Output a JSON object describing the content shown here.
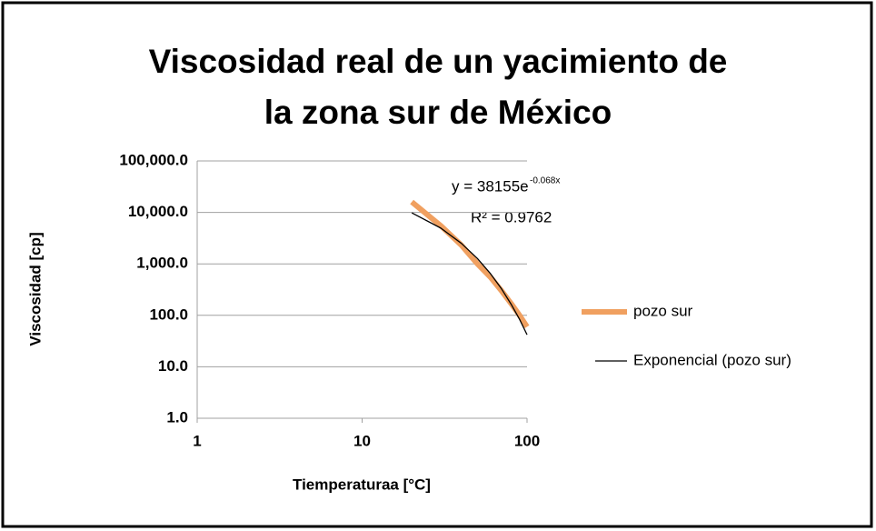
{
  "chart_data": {
    "type": "line",
    "title": [
      "Viscosidad real de un yacimiento de",
      "la zona sur de México"
    ],
    "x_label": "Tiemperaturaa [°C]",
    "y_label": "Viscosidad [cp]",
    "x": [
      20,
      30,
      40,
      50,
      60,
      70,
      80,
      90,
      100
    ],
    "series": [
      {
        "name": "pozo sur",
        "color": "#f0a060",
        "values": [
          16000,
          5500,
          2300,
          1000,
          550,
          300,
          170,
          100,
          60
        ]
      },
      {
        "name": "Exponencial (pozo sur)",
        "color": "#000000",
        "values": [
          9800,
          4950,
          2500,
          1270,
          645,
          327,
          165,
          84,
          42
        ]
      }
    ],
    "annotations": {
      "equation": "y = 38155e",
      "exponent": "-0.068x",
      "r_squared": "R² = 0.9762"
    },
    "xlim": [
      1,
      100
    ],
    "xticks": [
      1,
      10,
      100
    ],
    "ylim": [
      1,
      100000
    ],
    "yticks": [
      {
        "value": 1,
        "label": "1.0"
      },
      {
        "value": 10,
        "label": "10.0"
      },
      {
        "value": 100,
        "label": "100.0"
      },
      {
        "value": 1000,
        "label": "1,000.0"
      },
      {
        "value": 10000,
        "label": "10,000.0"
      },
      {
        "value": 100000,
        "label": "100,000.0"
      }
    ],
    "x_log": true,
    "y_log": true,
    "grid": true,
    "legend": "right"
  }
}
